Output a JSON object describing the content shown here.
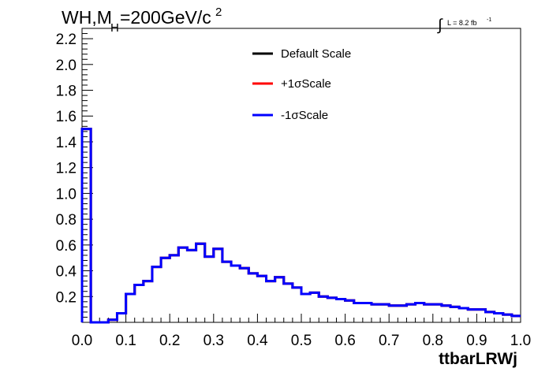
{
  "chart_data": {
    "type": "line",
    "title": {
      "main": "WH,M",
      "sub": "H",
      "rest": "=200GeV/c",
      "sup": "2"
    },
    "lumi": {
      "integral_symbol": "∫",
      "text": "L = 8.2 fb",
      "sup": "-1"
    },
    "xlabel": "ttbarLRWj",
    "ylabel": "",
    "xlim": [
      0.0,
      1.0
    ],
    "ylim": [
      0.0,
      2.28
    ],
    "x_ticks": [
      "0.0",
      "0.1",
      "0.2",
      "0.3",
      "0.4",
      "0.5",
      "0.6",
      "0.7",
      "0.8",
      "0.9",
      "1.0"
    ],
    "y_ticks": [
      "0.2",
      "0.4",
      "0.6",
      "0.8",
      "1.0",
      "1.2",
      "1.4",
      "1.6",
      "1.8",
      "2.0",
      "2.2"
    ],
    "bin_edges": [
      0.0,
      0.02,
      0.04,
      0.06,
      0.08,
      0.1,
      0.12,
      0.14,
      0.16,
      0.18,
      0.2,
      0.22,
      0.24,
      0.26,
      0.28,
      0.3,
      0.32,
      0.34,
      0.36,
      0.38,
      0.4,
      0.42,
      0.44,
      0.46,
      0.48,
      0.5,
      0.52,
      0.54,
      0.56,
      0.58,
      0.6,
      0.62,
      0.64,
      0.66,
      0.68,
      0.7,
      0.72,
      0.74,
      0.76,
      0.78,
      0.8,
      0.82,
      0.84,
      0.86,
      0.88,
      0.9,
      0.92,
      0.94,
      0.96,
      0.98,
      1.0
    ],
    "series": [
      {
        "name": "Default Scale",
        "color": "#000000",
        "values": [
          1.5,
          0.0,
          0.0,
          0.02,
          0.07,
          0.22,
          0.29,
          0.32,
          0.43,
          0.5,
          0.52,
          0.58,
          0.56,
          0.61,
          0.51,
          0.57,
          0.47,
          0.44,
          0.42,
          0.38,
          0.36,
          0.32,
          0.35,
          0.3,
          0.27,
          0.22,
          0.23,
          0.2,
          0.19,
          0.18,
          0.17,
          0.15,
          0.15,
          0.14,
          0.14,
          0.13,
          0.13,
          0.14,
          0.15,
          0.14,
          0.14,
          0.13,
          0.12,
          0.11,
          0.1,
          0.1,
          0.08,
          0.07,
          0.06,
          0.05
        ]
      },
      {
        "name": "+1σScale",
        "color": "#ff0000",
        "values": [
          1.5,
          0.0,
          0.0,
          0.02,
          0.07,
          0.22,
          0.29,
          0.32,
          0.43,
          0.5,
          0.52,
          0.58,
          0.56,
          0.61,
          0.51,
          0.57,
          0.47,
          0.44,
          0.42,
          0.38,
          0.36,
          0.32,
          0.35,
          0.3,
          0.27,
          0.22,
          0.23,
          0.2,
          0.19,
          0.18,
          0.17,
          0.15,
          0.15,
          0.14,
          0.14,
          0.13,
          0.13,
          0.14,
          0.15,
          0.14,
          0.14,
          0.13,
          0.12,
          0.11,
          0.1,
          0.1,
          0.08,
          0.07,
          0.06,
          0.05
        ]
      },
      {
        "name": "-1σScale",
        "color": "#0000ff",
        "values": [
          1.5,
          0.0,
          0.0,
          0.02,
          0.07,
          0.22,
          0.29,
          0.32,
          0.43,
          0.5,
          0.52,
          0.58,
          0.56,
          0.61,
          0.51,
          0.57,
          0.47,
          0.44,
          0.42,
          0.38,
          0.36,
          0.32,
          0.35,
          0.3,
          0.27,
          0.22,
          0.23,
          0.2,
          0.19,
          0.18,
          0.17,
          0.15,
          0.15,
          0.14,
          0.14,
          0.13,
          0.13,
          0.14,
          0.15,
          0.14,
          0.14,
          0.13,
          0.12,
          0.11,
          0.1,
          0.1,
          0.08,
          0.07,
          0.06,
          0.05
        ]
      }
    ],
    "legend_position": "top-center",
    "grid": false
  }
}
